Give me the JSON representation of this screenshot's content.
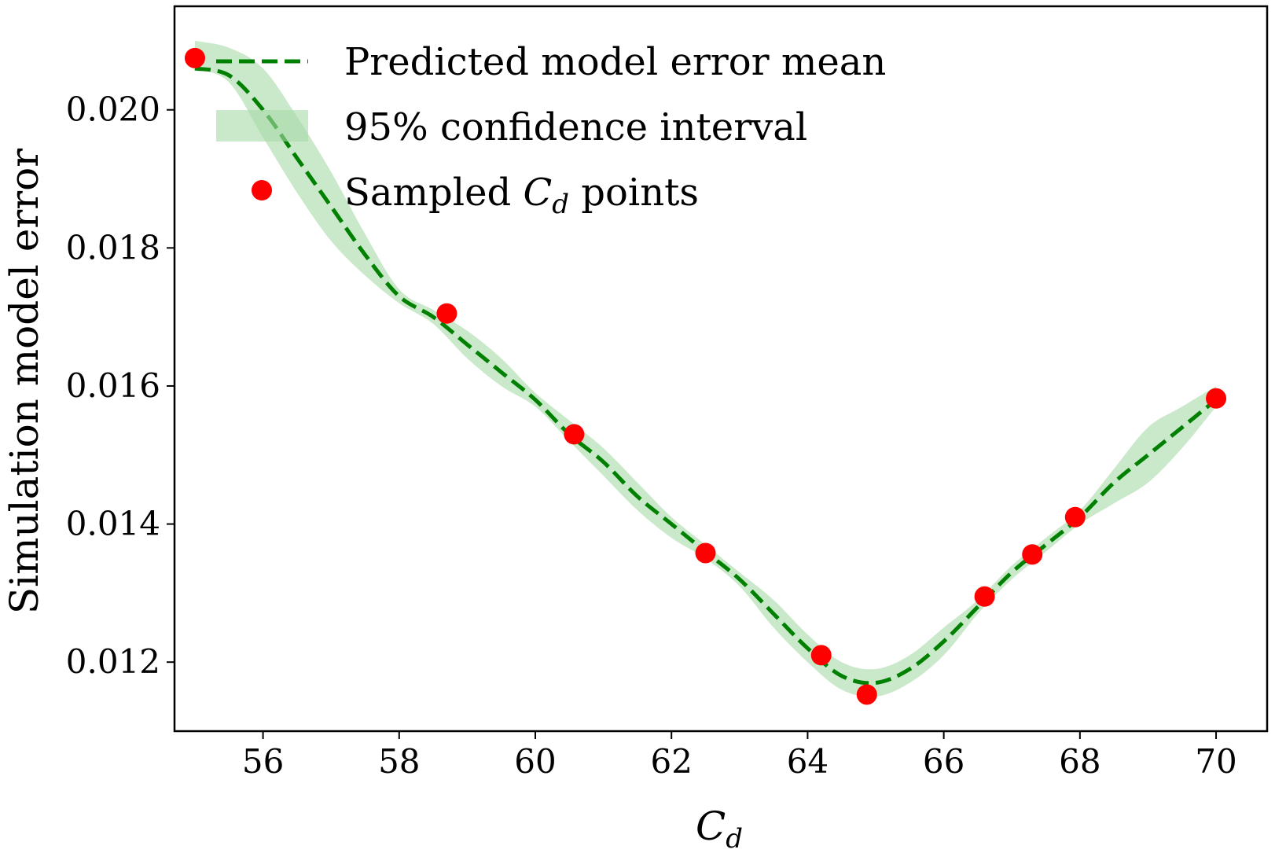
{
  "chart_data": {
    "type": "line",
    "title": "",
    "xlabel": "C",
    "xlabel_sub": "d",
    "ylabel": "Simulation model error",
    "xlim": [
      54.7,
      70.75
    ],
    "ylim": [
      0.011,
      0.0215
    ],
    "xticks": [
      56,
      58,
      60,
      62,
      64,
      66,
      68,
      70
    ],
    "yticks": [
      0.012,
      0.014,
      0.016,
      0.018,
      0.02
    ],
    "xtick_labels": [
      "56",
      "58",
      "60",
      "62",
      "64",
      "66",
      "68",
      "70"
    ],
    "ytick_labels": [
      "0.012",
      "0.014",
      "0.016",
      "0.018",
      "0.020"
    ],
    "grid": false,
    "legend_position": "top-left",
    "series": [
      {
        "name": "Predicted model error mean",
        "kind": "dashed-line",
        "color": "#008000",
        "x": [
          55.0,
          55.5,
          56.0,
          56.5,
          57.0,
          57.5,
          58.0,
          58.5,
          59.0,
          59.5,
          60.0,
          60.5,
          61.0,
          61.5,
          62.0,
          62.5,
          63.0,
          63.5,
          64.0,
          64.5,
          65.0,
          65.5,
          66.0,
          66.5,
          67.0,
          67.5,
          68.0,
          68.5,
          69.0,
          69.5,
          70.0
        ],
        "y": [
          0.0206,
          0.0205,
          0.02,
          0.0193,
          0.0186,
          0.0179,
          0.0173,
          0.017,
          0.0166,
          0.0162,
          0.0158,
          0.0153,
          0.0149,
          0.0144,
          0.014,
          0.0136,
          0.0132,
          0.0127,
          0.0122,
          0.0118,
          0.0117,
          0.0119,
          0.0123,
          0.0128,
          0.0133,
          0.0137,
          0.0141,
          0.0146,
          0.015,
          0.0154,
          0.0158
        ]
      },
      {
        "name": "95% confidence interval",
        "kind": "band",
        "color": "#a6d8a6",
        "x": [
          55.0,
          55.5,
          56.0,
          56.5,
          57.0,
          57.5,
          58.0,
          58.5,
          59.0,
          59.5,
          60.0,
          60.5,
          61.0,
          61.5,
          62.0,
          62.5,
          63.0,
          63.5,
          64.0,
          64.5,
          65.0,
          65.5,
          66.0,
          66.5,
          67.0,
          67.5,
          68.0,
          68.5,
          69.0,
          69.5,
          70.0
        ],
        "lower": [
          0.0206,
          0.0204,
          0.0196,
          0.0188,
          0.0181,
          0.0176,
          0.0172,
          0.0169,
          0.0164,
          0.016,
          0.0157,
          0.0152,
          0.0147,
          0.0142,
          0.0138,
          0.0135,
          0.0131,
          0.0125,
          0.012,
          0.0116,
          0.0115,
          0.0117,
          0.0121,
          0.0127,
          0.0132,
          0.0136,
          0.014,
          0.0143,
          0.0146,
          0.0151,
          0.0157
        ],
        "upper": [
          0.021,
          0.0209,
          0.0206,
          0.0199,
          0.0191,
          0.0182,
          0.0174,
          0.0171,
          0.0168,
          0.0164,
          0.0159,
          0.0155,
          0.0151,
          0.0146,
          0.0141,
          0.0137,
          0.0133,
          0.0129,
          0.0124,
          0.012,
          0.0119,
          0.0121,
          0.0125,
          0.0129,
          0.0134,
          0.0138,
          0.0142,
          0.0148,
          0.0154,
          0.0157,
          0.016
        ]
      },
      {
        "name": "Sampled C_d points",
        "legend_text_prefix": "Sampled ",
        "legend_text_symbol": "C",
        "legend_text_sub": "d",
        "legend_text_suffix": " points",
        "kind": "scatter",
        "color": "#ff0000",
        "x": [
          55.0,
          58.7,
          60.57,
          62.5,
          64.2,
          64.87,
          66.6,
          67.3,
          67.93,
          70.0
        ],
        "y": [
          0.02075,
          0.01705,
          0.0153,
          0.01358,
          0.0121,
          0.01153,
          0.01295,
          0.01356,
          0.0141,
          0.01582
        ]
      }
    ]
  }
}
